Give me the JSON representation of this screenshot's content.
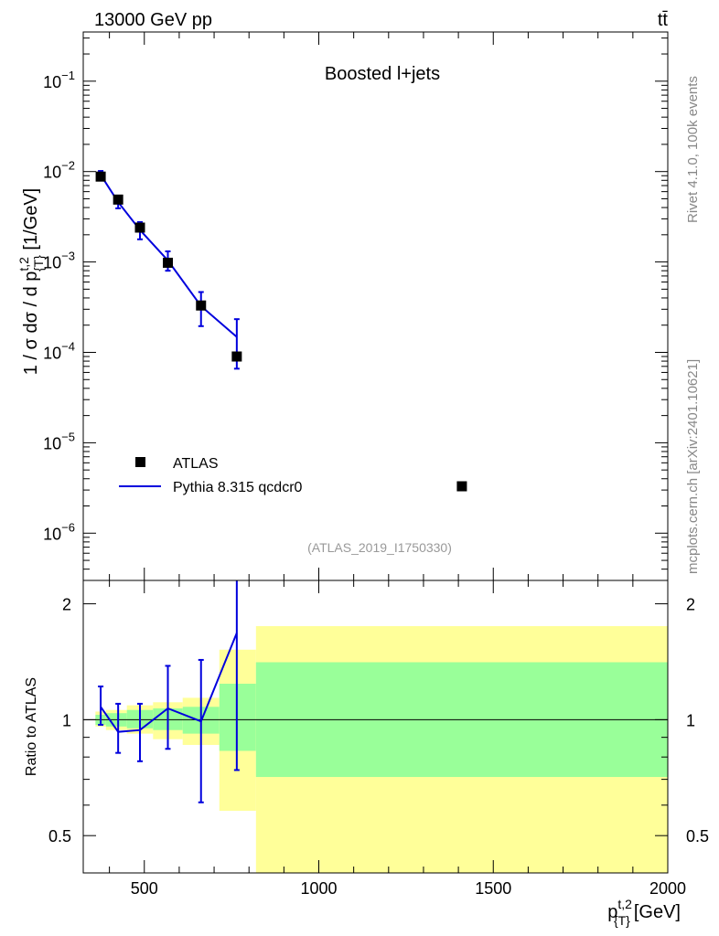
{
  "header": {
    "left": "13000 GeV pp",
    "right": "tt̄"
  },
  "side": {
    "rivet": "Rivet 4.1.0,  100k events",
    "mcplots": "mcplots.cern.ch [arXiv:2401.10621]"
  },
  "labels": {
    "main_ylabel": "1 / σ dσ / d p{T}t,2 [1/GeV]",
    "ratio_ylabel": "Ratio to ATLAS",
    "xlabel": "p{T}t,2 [GeV]",
    "title": "Boosted l+jets",
    "analysis": "(ATLAS_2019_I1750330)"
  },
  "colors": {
    "mc": "#0000dd",
    "data": "#000000",
    "band_inner": "#99ff99",
    "band_outer": "#ffff99"
  },
  "chart_data": {
    "type": "scatter",
    "title": "Boosted l+jets",
    "xlabel": "p_{T}^{t,2} [GeV]",
    "ylabel": "1/σ dσ/dp_{T}^{t,2} [1/GeV]",
    "xlim": [
      325,
      2000
    ],
    "ylim_log": [
      3e-07,
      0.35
    ],
    "ratio_ylim": [
      0.4,
      2.3
    ],
    "x_ticks": [
      500,
      1000,
      1500,
      2000
    ],
    "x_tick_labels": [
      "500",
      "1000",
      "1500",
      "2000"
    ],
    "y_ticks": [
      1e-06,
      1e-05,
      0.0001,
      0.001,
      0.01,
      0.1
    ],
    "y_tick_labels": [
      {
        "base": "10",
        "exp": "−6"
      },
      {
        "base": "10",
        "exp": "−5"
      },
      {
        "base": "10",
        "exp": "−4"
      },
      {
        "base": "10",
        "exp": "−3"
      },
      {
        "base": "10",
        "exp": "−2"
      },
      {
        "base": "10",
        "exp": "−1"
      }
    ],
    "ratio_ticks": [
      0.5,
      1,
      2
    ],
    "ratio_tick_labels": [
      "0.5",
      "1",
      "2"
    ],
    "legend": [
      "ATLAS",
      "Pythia 8.315 qcdcr0"
    ],
    "data": {
      "name": "ATLAS",
      "x": [
        375,
        425,
        487.5,
        567.5,
        662.5,
        765,
        1410
      ],
      "y": [
        0.0088,
        0.0049,
        0.0024,
        0.00098,
        0.00033,
        9e-05,
        3.3e-06
      ]
    },
    "mc": {
      "name": "Pythia 8.315 qcdcr0",
      "x": [
        375,
        425,
        487.5,
        567.5,
        662.5,
        765
      ],
      "y": [
        0.0092,
        0.0046,
        0.00226,
        0.00104,
        0.000325,
        0.000148
      ],
      "err_lo": [
        0.0009,
        0.00068,
        0.00048,
        0.00024,
        0.00013,
        8.2e-05
      ],
      "err_hi": [
        0.00095,
        0.0008,
        0.0005,
        0.00027,
        0.00014,
        8.5e-05
      ],
      "ratio": [
        1.08,
        0.93,
        0.94,
        1.07,
        0.99,
        1.68
      ],
      "ratio_lo": [
        0.97,
        0.82,
        0.78,
        0.84,
        0.61,
        0.74
      ],
      "ratio_hi": [
        1.22,
        1.1,
        1.1,
        1.38,
        1.43,
        2.3
      ]
    },
    "bands": [
      {
        "x0": 360,
        "x1": 390,
        "in_lo": 0.97,
        "in_hi": 1.03,
        "out_lo": 0.96,
        "out_hi": 1.05
      },
      {
        "x0": 390,
        "x1": 450,
        "in_lo": 0.96,
        "in_hi": 1.04,
        "out_lo": 0.94,
        "out_hi": 1.06
      },
      {
        "x0": 450,
        "x1": 525,
        "in_lo": 0.95,
        "in_hi": 1.06,
        "out_lo": 0.92,
        "out_hi": 1.09
      },
      {
        "x0": 525,
        "x1": 610,
        "in_lo": 0.94,
        "in_hi": 1.07,
        "out_lo": 0.89,
        "out_hi": 1.11
      },
      {
        "x0": 610,
        "x1": 715,
        "in_lo": 0.92,
        "in_hi": 1.08,
        "out_lo": 0.86,
        "out_hi": 1.14
      },
      {
        "x0": 715,
        "x1": 820,
        "in_lo": 0.83,
        "in_hi": 1.24,
        "out_lo": 0.58,
        "out_hi": 1.52
      },
      {
        "x0": 820,
        "x1": 2000,
        "in_lo": 0.71,
        "in_hi": 1.41,
        "out_lo": 0.35,
        "out_hi": 1.75
      }
    ]
  }
}
